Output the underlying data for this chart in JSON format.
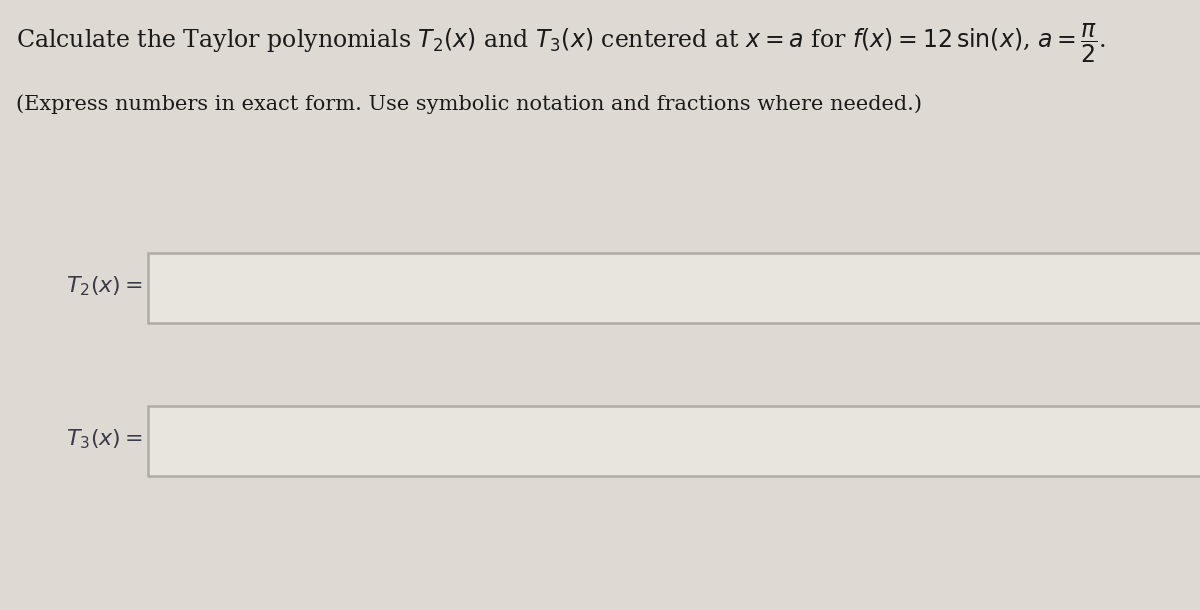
{
  "background_color": "#dedad3",
  "page_color": "#e8e5df",
  "title_line1": "Calculate the Taylor polynomials $T_2(x)$ and $T_3(x)$ centered at $x = a$ for $f(x) = 12\\,\\sin(x)$, $a = \\dfrac{\\pi}{2}$.",
  "subtitle": "(Express numbers in exact form. Use symbolic notation and fractions where needed.)",
  "label1": "$T_2(x) =$",
  "label2": "$T_3(x) =$",
  "box_border_color": "#b0aca5",
  "box_fill_color": "#e8e5df",
  "text_color": "#3a3a4a",
  "title_color": "#1a1a1a",
  "subtitle_color": "#1a1a1a",
  "title_fontsize": 17,
  "subtitle_fontsize": 15,
  "label_fontsize": 16
}
